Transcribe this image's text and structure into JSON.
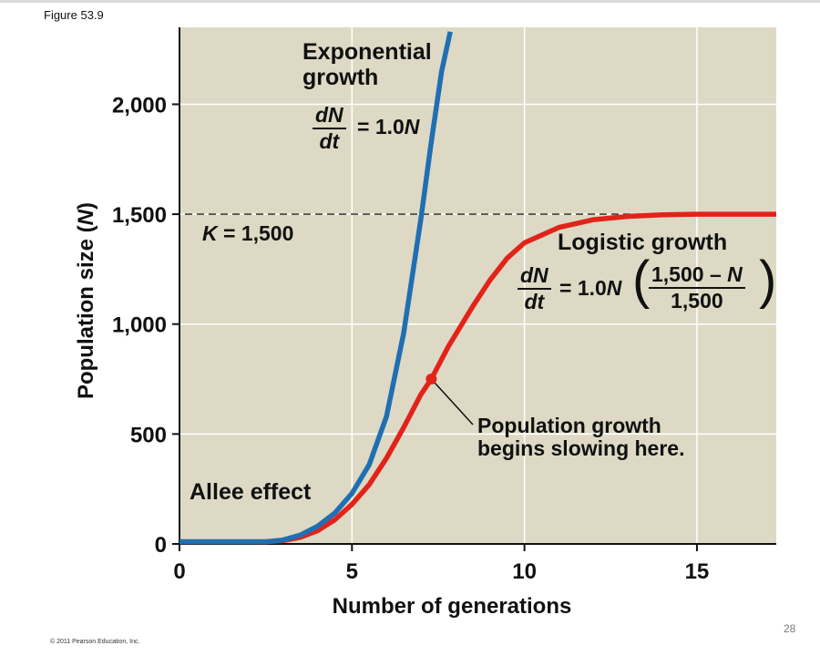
{
  "figure_label": "Figure 53.9",
  "copyright": "© 2011 Pearson Education, Inc.",
  "page_number": "28",
  "colors": {
    "plot_background": "#ddd9c4",
    "exponential": "#1f6fb2",
    "logistic": "#e2231a",
    "grid": "#ffffff"
  },
  "annotations": {
    "exponential_title_line1": "Exponential",
    "exponential_title_line2": "growth",
    "exp_eq_num": "dN",
    "exp_eq_den": "dt",
    "exp_eq_rhs_prefix": "= 1.0",
    "exp_eq_rhs_var": "N",
    "k_label_var": "K",
    "k_label_rest": " = 1,500",
    "logistic_title": "Logistic growth",
    "log_eq_num": "dN",
    "log_eq_den": "dt",
    "log_eq_rhs_prefix": "= 1.0",
    "log_eq_rhs_var": "N",
    "log_eq_inner_num_prefix": "1,500 – ",
    "log_eq_inner_num_var": "N",
    "log_eq_inner_den": "1,500",
    "slowing_line1": "Population growth",
    "slowing_line2": "begins slowing here.",
    "allee": "Allee effect"
  },
  "chart_data": {
    "type": "line",
    "xlabel": "Number of generations",
    "ylabel_prefix": "Population size (",
    "ylabel_var": "N",
    "ylabel_suffix": ")",
    "xlim": [
      0,
      17.3
    ],
    "ylim": [
      0,
      2350
    ],
    "x_ticks": [
      0,
      5,
      10,
      15
    ],
    "x_tick_labels": [
      "0",
      "5",
      "10",
      "15"
    ],
    "y_ticks": [
      0,
      500,
      1000,
      1500,
      2000
    ],
    "y_tick_labels": [
      "0",
      "500",
      "1,000",
      "1,500",
      "2,000"
    ],
    "grid": true,
    "carrying_capacity": 1500,
    "series": [
      {
        "key": "exponential",
        "x": [
          0,
          2.5,
          3,
          3.5,
          4,
          4.5,
          5,
          5.5,
          6,
          6.5,
          7,
          7.3,
          7.6,
          7.85
        ],
        "y": [
          10,
          10,
          18,
          40,
          80,
          140,
          230,
          360,
          580,
          960,
          1480,
          1830,
          2150,
          2330
        ]
      },
      {
        "key": "logistic",
        "x": [
          0,
          2.5,
          3,
          3.5,
          4,
          4.5,
          5,
          5.5,
          6,
          6.5,
          7,
          7.3,
          7.8,
          8.5,
          9,
          9.5,
          10,
          11,
          12,
          13,
          14,
          15,
          16,
          17.3
        ],
        "y": [
          10,
          10,
          15,
          30,
          60,
          110,
          180,
          270,
          390,
          530,
          680,
          750,
          900,
          1080,
          1200,
          1300,
          1370,
          1440,
          1475,
          1490,
          1497,
          1500,
          1500,
          1500
        ]
      }
    ],
    "highlight_point": {
      "x": 7.3,
      "y": 750
    }
  }
}
